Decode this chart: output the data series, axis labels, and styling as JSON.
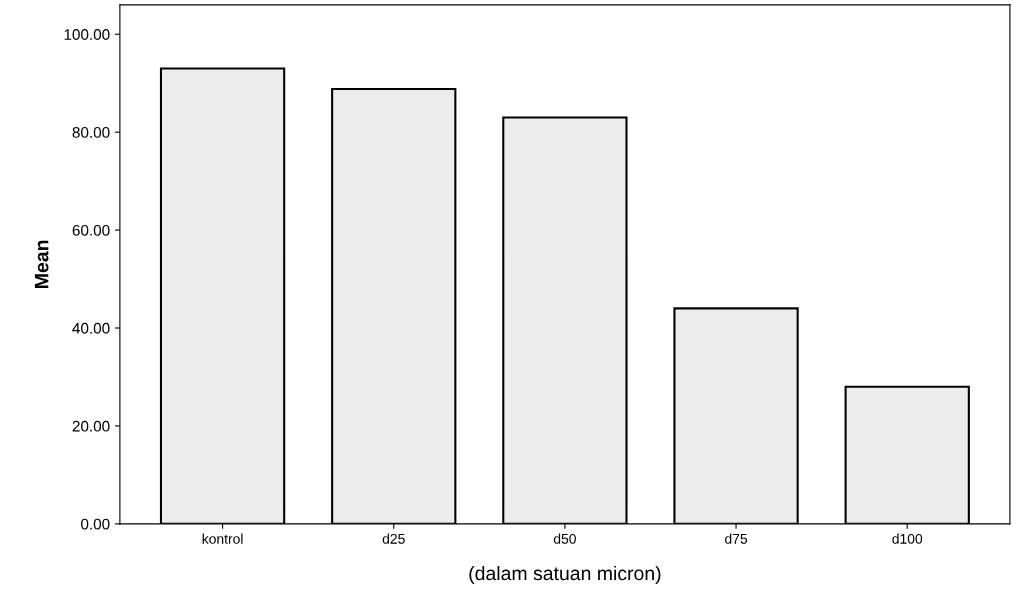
{
  "chart_data": {
    "type": "bar",
    "xlabel": "(dalam satuan micron)",
    "ylabel": "Mean",
    "categories": [
      "kontrol",
      "d25",
      "d50",
      "d75",
      "d100"
    ],
    "values": [
      93.0,
      88.8,
      83.0,
      44.0,
      28.0
    ],
    "color": "#ececec",
    "ylim": [
      0,
      106
    ],
    "yticks": [
      {
        "value": 0,
        "label": "0.00"
      },
      {
        "value": 20,
        "label": "20.00"
      },
      {
        "value": 40,
        "label": "40.00"
      },
      {
        "value": 60,
        "label": "60.00"
      },
      {
        "value": 80,
        "label": "80.00"
      },
      {
        "value": 100,
        "label": "100.00"
      }
    ],
    "grid": false,
    "legend": false
  }
}
